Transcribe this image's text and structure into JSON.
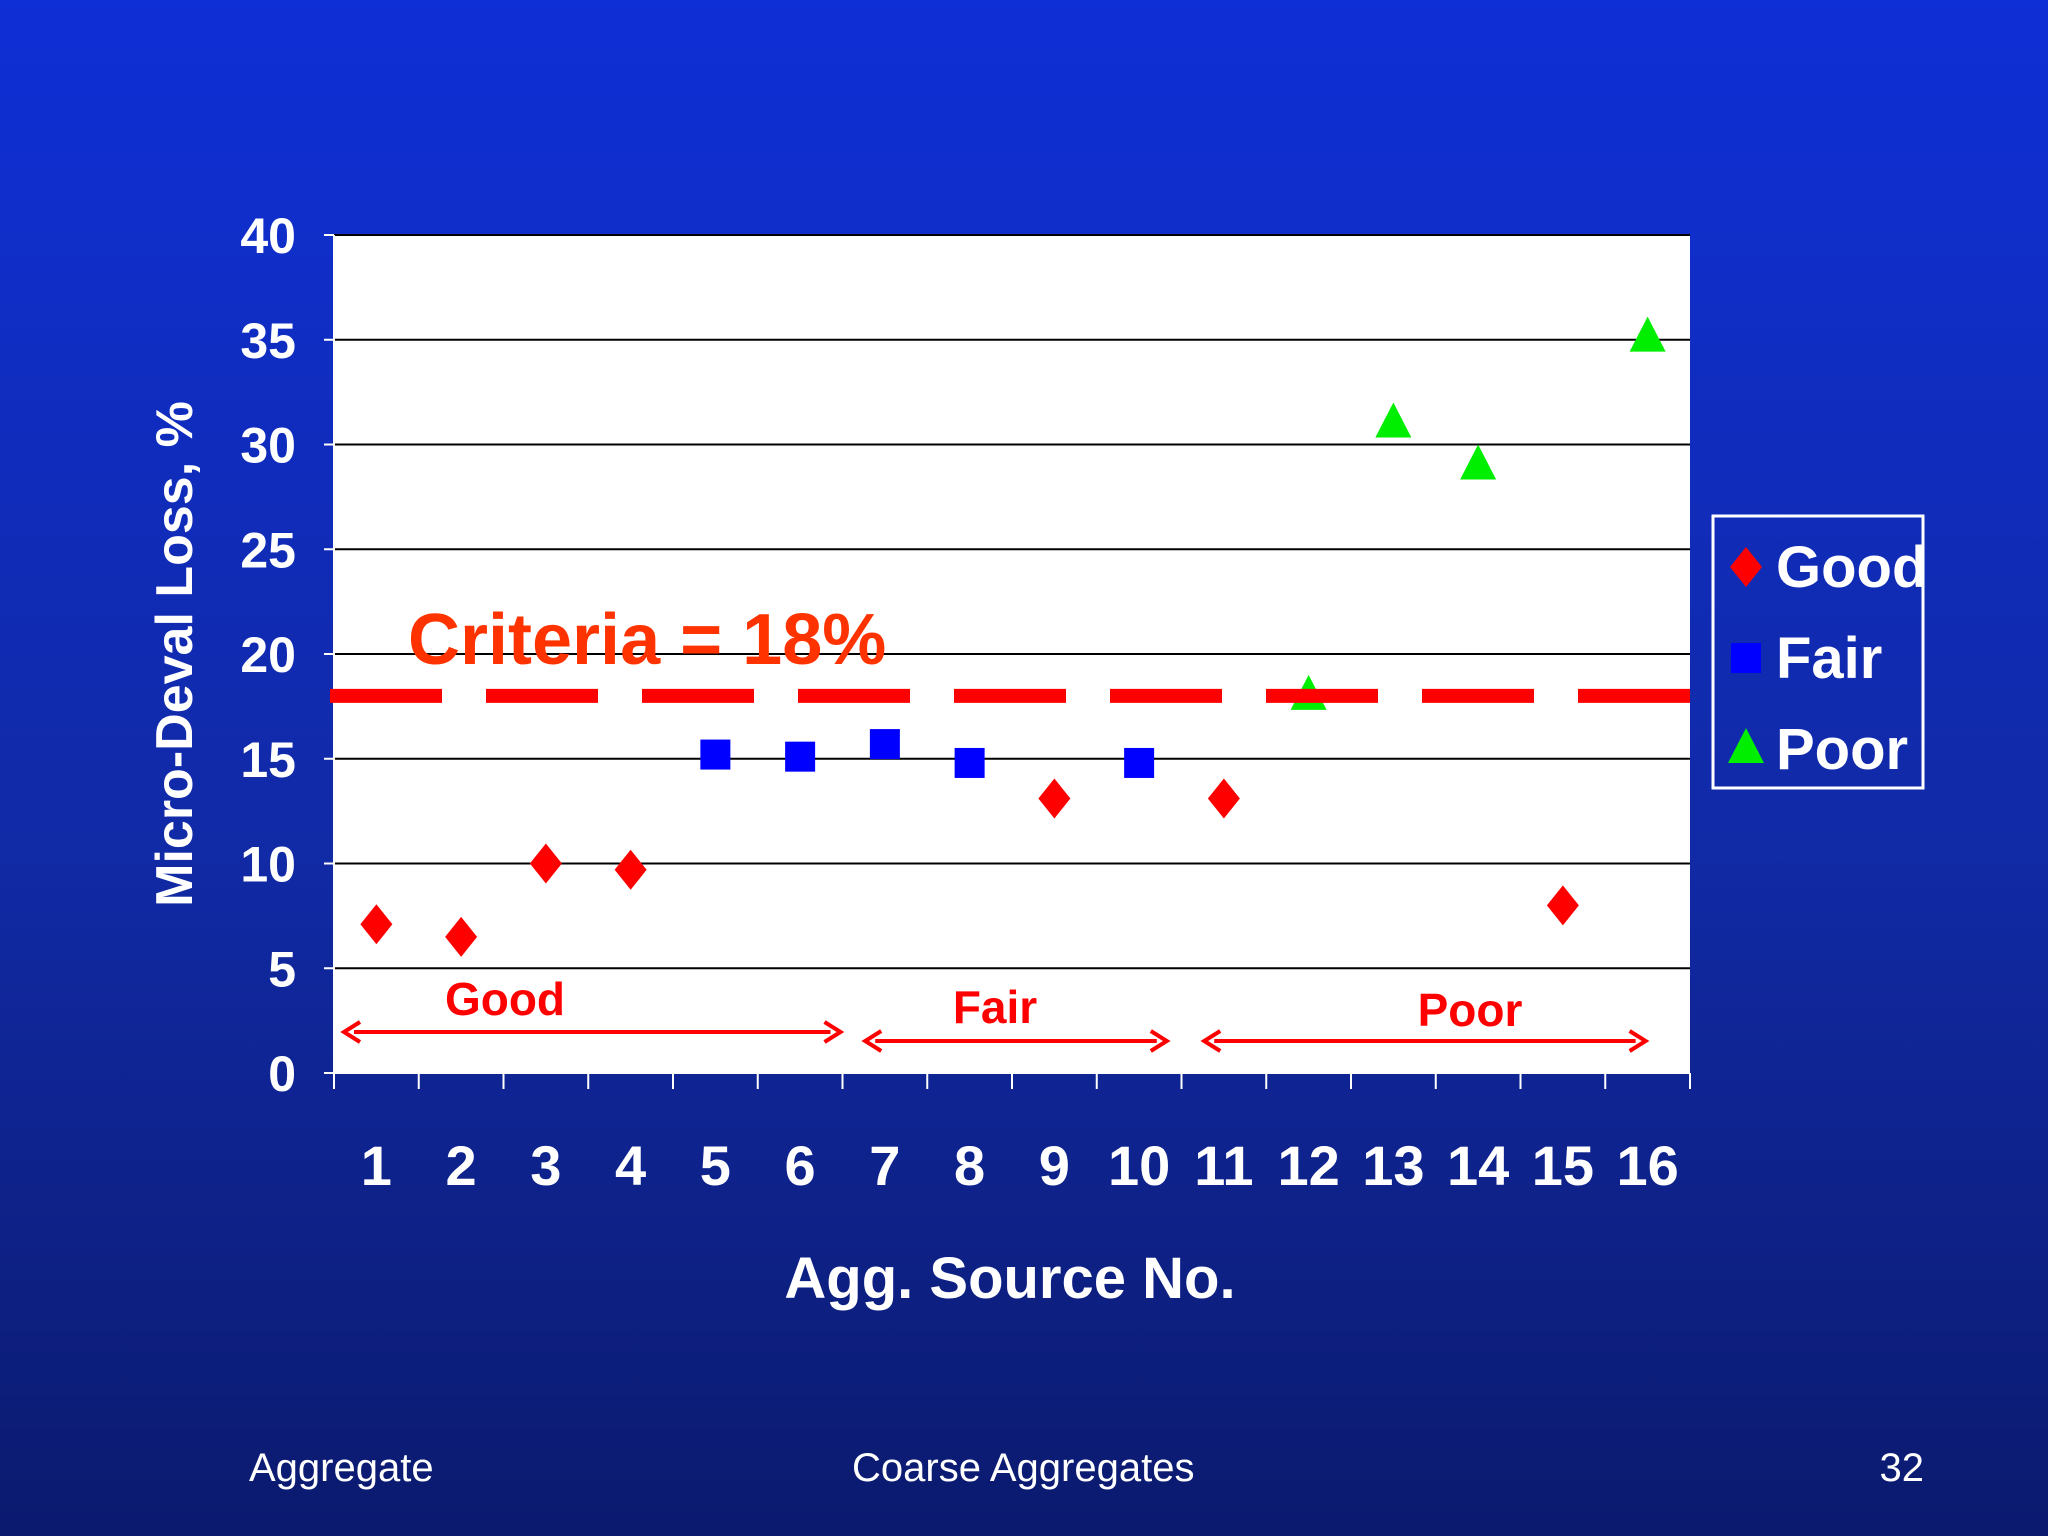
{
  "chart_data": {
    "type": "scatter",
    "xlabel": "Agg. Source No.",
    "ylabel": "Micro-Deval Loss, %",
    "xlim": [
      0.5,
      16.5
    ],
    "ylim": [
      0,
      40
    ],
    "x_ticks": [
      1,
      2,
      3,
      4,
      5,
      6,
      7,
      8,
      9,
      10,
      11,
      12,
      13,
      14,
      15,
      16
    ],
    "y_ticks": [
      0,
      5,
      10,
      15,
      20,
      25,
      30,
      35,
      40
    ],
    "grid": "horizontal",
    "legend_position": "right",
    "series": [
      {
        "name": "Good",
        "marker": "diamond",
        "color": "#ff0000",
        "points": [
          {
            "x": 1,
            "y": 7.1
          },
          {
            "x": 2,
            "y": 6.5
          },
          {
            "x": 3,
            "y": 10.0
          },
          {
            "x": 4,
            "y": 9.7
          },
          {
            "x": 9,
            "y": 13.1
          },
          {
            "x": 11,
            "y": 13.1
          },
          {
            "x": 15,
            "y": 8.0
          }
        ]
      },
      {
        "name": "Fair",
        "marker": "square",
        "color": "#0000ff",
        "points": [
          {
            "x": 5,
            "y": 15.2
          },
          {
            "x": 6,
            "y": 15.1
          },
          {
            "x": 7,
            "y": 15.7
          },
          {
            "x": 8,
            "y": 14.8
          },
          {
            "x": 10,
            "y": 14.8
          }
        ]
      },
      {
        "name": "Poor",
        "marker": "triangle",
        "color": "#00ee00",
        "points": [
          {
            "x": 12,
            "y": 18.0
          },
          {
            "x": 13,
            "y": 31.0
          },
          {
            "x": 14,
            "y": 29.0
          },
          {
            "x": 16,
            "y": 35.1
          }
        ]
      }
    ],
    "criteria": {
      "value": 18,
      "label": "Criteria = 18%",
      "color": "#ff0000",
      "label_color": "#ff3300"
    },
    "ranges": [
      {
        "label": "Good",
        "from": 0.5,
        "to": 6.5
      },
      {
        "label": "Fair",
        "from": 6.65,
        "to": 10.35
      },
      {
        "label": "Poor",
        "from": 10.65,
        "to": 16.0
      }
    ]
  },
  "footer": {
    "left": "Aggregate",
    "center": "Coarse Aggregates",
    "right": "32"
  }
}
